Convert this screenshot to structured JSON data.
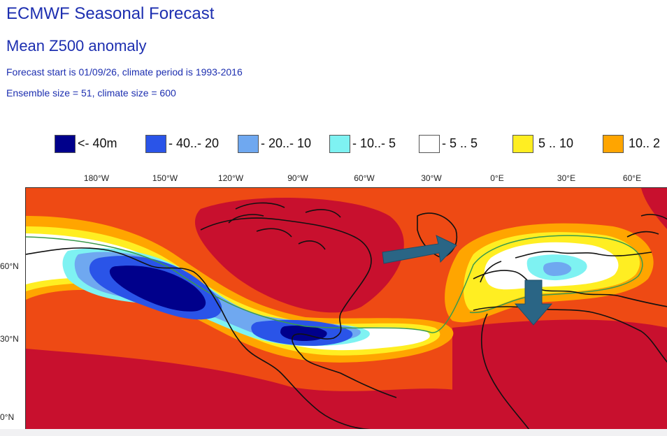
{
  "header": {
    "title": "ECMWF Seasonal Forecast",
    "subtitle": "Mean Z500 anomaly",
    "line1": "Forecast start is 01/09/26, climate period is 1993-2016",
    "line2": "Ensemble size = 51, climate size = 600"
  },
  "legend": [
    {
      "label": "<- 40m",
      "color": "#00008b"
    },
    {
      "label": "- 40..- 20",
      "color": "#2a54e8"
    },
    {
      "label": "- 20..- 10",
      "color": "#6fa8f0"
    },
    {
      "label": "- 10..- 5",
      "color": "#7ef2f2"
    },
    {
      "label": "- 5 .. 5",
      "color": "#ffffff"
    },
    {
      "label": "5 .. 10",
      "color": "#ffee22"
    },
    {
      "label": "10.. 2",
      "color": "#ffa500"
    }
  ],
  "axes": {
    "longitudes": [
      "180°W",
      "150°W",
      "120°W",
      "90°W",
      "60°W",
      "30°W",
      "0°E",
      "30°E",
      "60°E"
    ],
    "latitudes": [
      "60°N",
      "30°N",
      "0°N"
    ]
  },
  "map_colors": {
    "deep_red": "#c8102e",
    "orange_red": "#ee4a14",
    "orange": "#ffa500",
    "yellow": "#ffee22",
    "white": "#ffffff",
    "cyan": "#7ef2f2",
    "light_blue": "#6fa8f0",
    "blue": "#2a54e8",
    "dark_blue": "#00008b",
    "arrow": "#2a6585"
  }
}
